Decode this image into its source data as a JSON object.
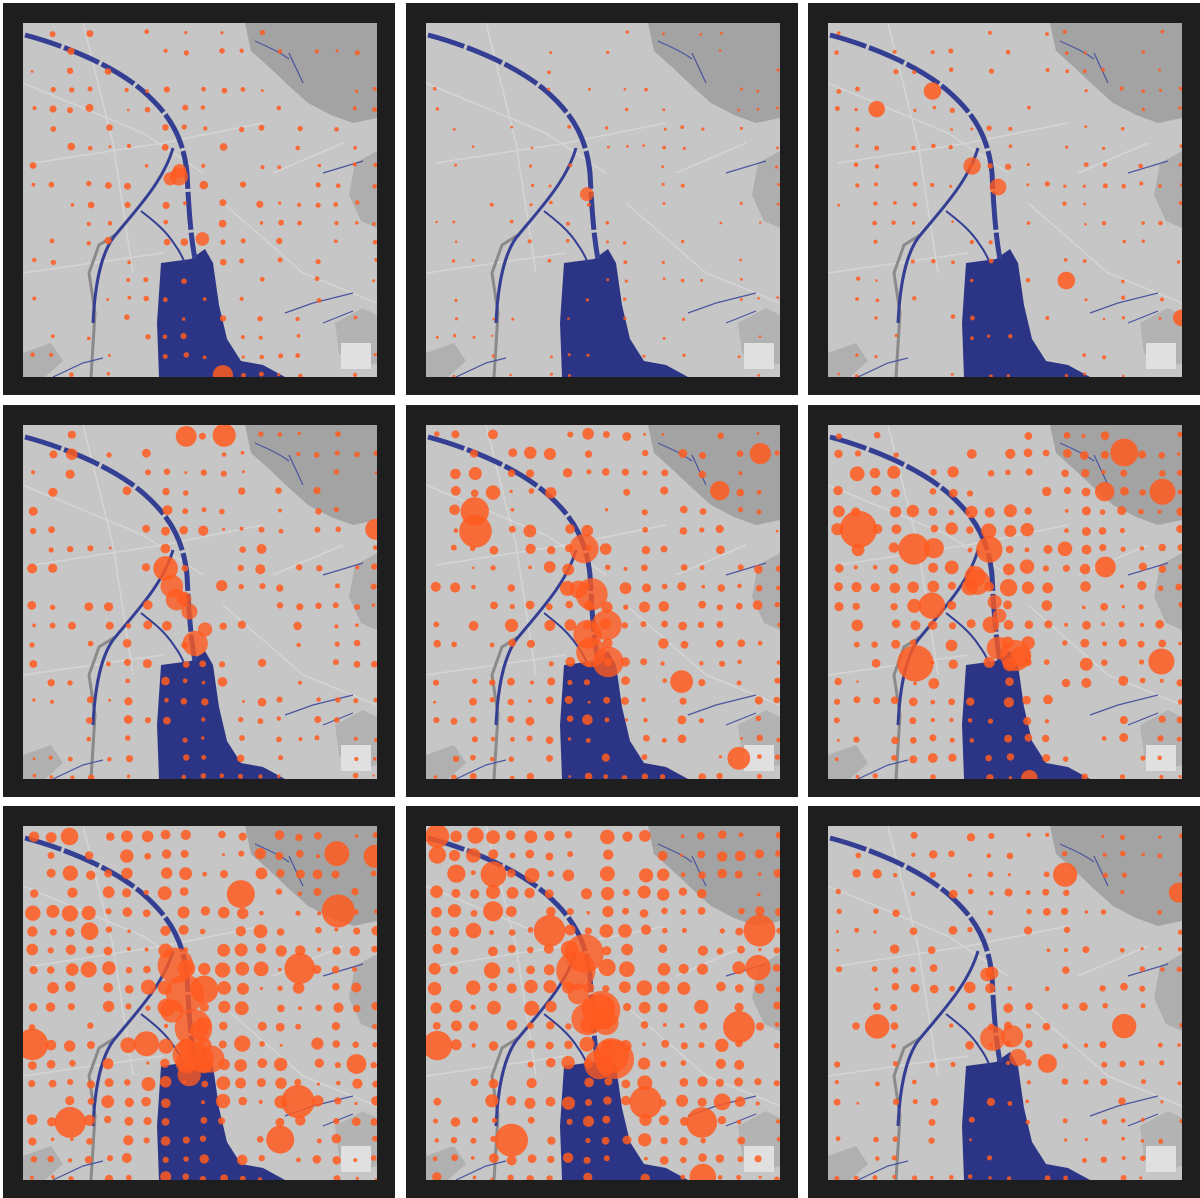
{
  "figure": {
    "rows": 3,
    "cols": 3,
    "colors": {
      "frame": "#1e1e1e",
      "land": "#c6c6c6",
      "highland": "#a3a3a3",
      "water": "#2c3585",
      "channel": "#343e92",
      "hotspot": "#ff5a1f",
      "rail": "#8a8a8a"
    }
  },
  "panels": [
    {
      "id": 1,
      "hotspot_intensity": 0.35
    },
    {
      "id": 2,
      "hotspot_intensity": 0.12
    },
    {
      "id": 3,
      "hotspot_intensity": 0.22
    },
    {
      "id": 4,
      "hotspot_intensity": 0.55
    },
    {
      "id": 5,
      "hotspot_intensity": 0.72
    },
    {
      "id": 6,
      "hotspot_intensity": 0.82
    },
    {
      "id": 7,
      "hotspot_intensity": 0.95
    },
    {
      "id": 8,
      "hotspot_intensity": 1.0
    },
    {
      "id": 9,
      "hotspot_intensity": 0.5
    }
  ]
}
